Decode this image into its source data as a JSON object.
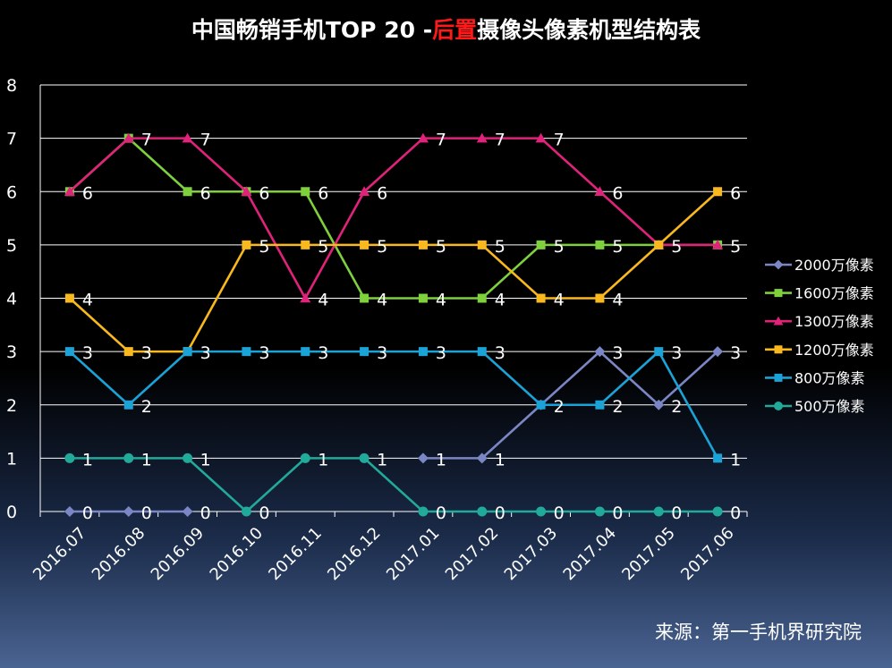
{
  "chart_data": {
    "type": "line",
    "title": {
      "prefix": "中国畅销手机TOP 20 -",
      "highlight": "后置",
      "suffix": "摄像头像素机型结构表"
    },
    "title_highlight_color": "#ff1a1a",
    "categories": [
      "2016.07",
      "2016.08",
      "2016.09",
      "2016.10",
      "2016.11",
      "2016.12",
      "2017.01",
      "2017.02",
      "2017.03",
      "2017.04",
      "2017.05",
      "2017.06"
    ],
    "ylim": [
      0,
      8
    ],
    "yticks": [
      "0",
      "1",
      "2",
      "3",
      "4",
      "5",
      "6",
      "7",
      "8"
    ],
    "grid": true,
    "legend_position": "right",
    "series": [
      {
        "name": "2000万像素",
        "color": "#7b86c4",
        "marker": "diamond",
        "values": [
          0,
          0,
          0,
          null,
          null,
          null,
          1,
          1,
          2,
          3,
          2,
          3
        ],
        "labels": [
          "0",
          "0",
          "0",
          null,
          null,
          null,
          "1",
          "1",
          "2",
          "3",
          "2",
          "3"
        ]
      },
      {
        "name": "1600万像素",
        "color": "#7ed13c",
        "marker": "square",
        "values": [
          6,
          7,
          6,
          6,
          6,
          4,
          4,
          4,
          5,
          5,
          5,
          5
        ],
        "labels": [
          null,
          null,
          "6",
          null,
          "6",
          "4",
          "4",
          "4",
          "5",
          "5",
          null,
          null
        ]
      },
      {
        "name": "1300万像素",
        "color": "#e0227a",
        "marker": "triangle",
        "values": [
          6,
          7,
          7,
          6,
          4,
          6,
          7,
          7,
          7,
          6,
          5,
          5
        ],
        "labels": [
          "6",
          "7",
          "7",
          "6",
          "4",
          "6",
          "7",
          "7",
          "7",
          "6",
          null,
          "5"
        ]
      },
      {
        "name": "1200万像素",
        "color": "#f9b91e",
        "marker": "square",
        "values": [
          4,
          3,
          3,
          5,
          5,
          5,
          5,
          5,
          4,
          4,
          5,
          6
        ],
        "labels": [
          "4",
          "3",
          null,
          "5",
          "5",
          "5",
          "5",
          "5",
          "4",
          "4",
          "5",
          "6"
        ]
      },
      {
        "name": "800万像素",
        "color": "#1ba3d8",
        "marker": "square",
        "values": [
          3,
          2,
          3,
          3,
          3,
          3,
          3,
          3,
          2,
          2,
          3,
          1
        ],
        "labels": [
          "3",
          "2",
          "3",
          "3",
          "3",
          "3",
          "3",
          "3",
          null,
          "2",
          "3",
          "1"
        ]
      },
      {
        "name": "500万像素",
        "color": "#21a99a",
        "marker": "circle",
        "values": [
          1,
          1,
          1,
          0,
          1,
          1,
          0,
          0,
          0,
          0,
          0,
          0
        ],
        "labels": [
          "1",
          "1",
          "1",
          "0",
          "1",
          "1",
          "0",
          "0",
          "0",
          "0",
          "0",
          "0"
        ]
      }
    ]
  },
  "source": "来源：第一手机界研究院"
}
